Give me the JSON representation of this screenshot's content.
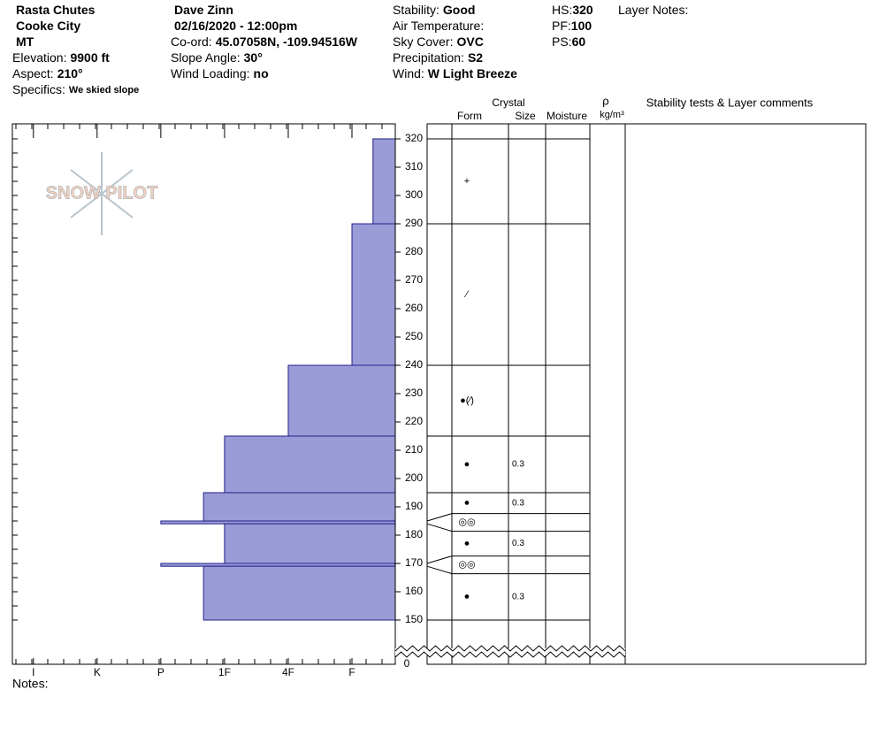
{
  "header": {
    "columns": [
      [
        {
          "value": "Rasta Chutes"
        },
        {
          "value": "Cooke City"
        },
        {
          "value": "MT"
        },
        {
          "label": "Elevation:",
          "value": "9900 ft"
        },
        {
          "label": "Aspect:",
          "value": "210°"
        },
        {
          "label": "Specifics:",
          "value": "We skied slope"
        }
      ],
      [
        {
          "value": "Dave Zinn"
        },
        {
          "value": "02/16/2020 - 12:00pm"
        },
        {
          "label": "Co-ord:",
          "value": "45.07058N, -109.94516W"
        },
        {
          "label": "Slope Angle:",
          "value": "30°"
        },
        {
          "label": "Wind Loading:",
          "value": "no"
        }
      ],
      [
        {
          "label": "Stability:",
          "value": "Good"
        },
        {
          "label": "Air Temperature:"
        },
        {
          "label": "Sky Cover:",
          "value": "OVC"
        },
        {
          "label": "Precipitation:",
          "value": "S2"
        },
        {
          "label": "Wind:",
          "value": "W Light Breeze"
        }
      ],
      [
        {
          "label": "HS:",
          "value": "320"
        },
        {
          "label": "PF:",
          "value": "100"
        },
        {
          "label": "PS:",
          "value": "60"
        }
      ],
      [
        {
          "label": "Layer Notes:"
        }
      ]
    ]
  },
  "table_header": {
    "crystal": "Crystal",
    "form": "Form",
    "size": "Size",
    "moisture": "Moisture",
    "rho": "ρ",
    "density_unit": "kg/m³",
    "comments": "Stability tests & Layer comments"
  },
  "logo": "SNOW PILOT",
  "notes": "Notes:",
  "chart_data": {
    "type": "hardness-profile",
    "xlim": [
      6.33,
      0.32
    ],
    "xticks": [
      {
        "value": 6,
        "label": "I"
      },
      {
        "value": 5,
        "label": "K"
      },
      {
        "value": 4,
        "label": "P"
      },
      {
        "value": 3,
        "label": "1F"
      },
      {
        "value": 2,
        "label": "4F"
      },
      {
        "value": 1,
        "label": "F"
      }
    ],
    "ylim": [
      150,
      320
    ],
    "yticks": [
      150,
      160,
      170,
      180,
      190,
      200,
      210,
      220,
      230,
      240,
      250,
      260,
      270,
      280,
      290,
      300,
      310,
      320
    ],
    "y_origin_tick": 0,
    "color": "#9b9bd7",
    "layers": [
      {
        "top": 320,
        "bottom": 290,
        "hardness": 0.67,
        "form": "+"
      },
      {
        "top": 290,
        "bottom": 240,
        "hardness": 1,
        "form": "⁄"
      },
      {
        "top": 240,
        "bottom": 215,
        "hardness": 2,
        "form": "●(⁄)"
      },
      {
        "top": 215,
        "bottom": 195,
        "hardness": 3,
        "form": "●",
        "size": "0.3"
      },
      {
        "top": 195,
        "bottom": 185,
        "hardness": 3.33,
        "form": "●",
        "size": "0.3"
      },
      {
        "top": 185,
        "bottom": 184,
        "hardness": 4,
        "form": "◎◎"
      },
      {
        "top": 184,
        "bottom": 170,
        "hardness": 3,
        "form": "●",
        "size": "0.3"
      },
      {
        "top": 170,
        "bottom": 169,
        "hardness": 4,
        "form": "◎◎"
      },
      {
        "top": 169,
        "bottom": 150,
        "hardness": 3.33,
        "form": "●",
        "size": "0.3"
      }
    ]
  }
}
